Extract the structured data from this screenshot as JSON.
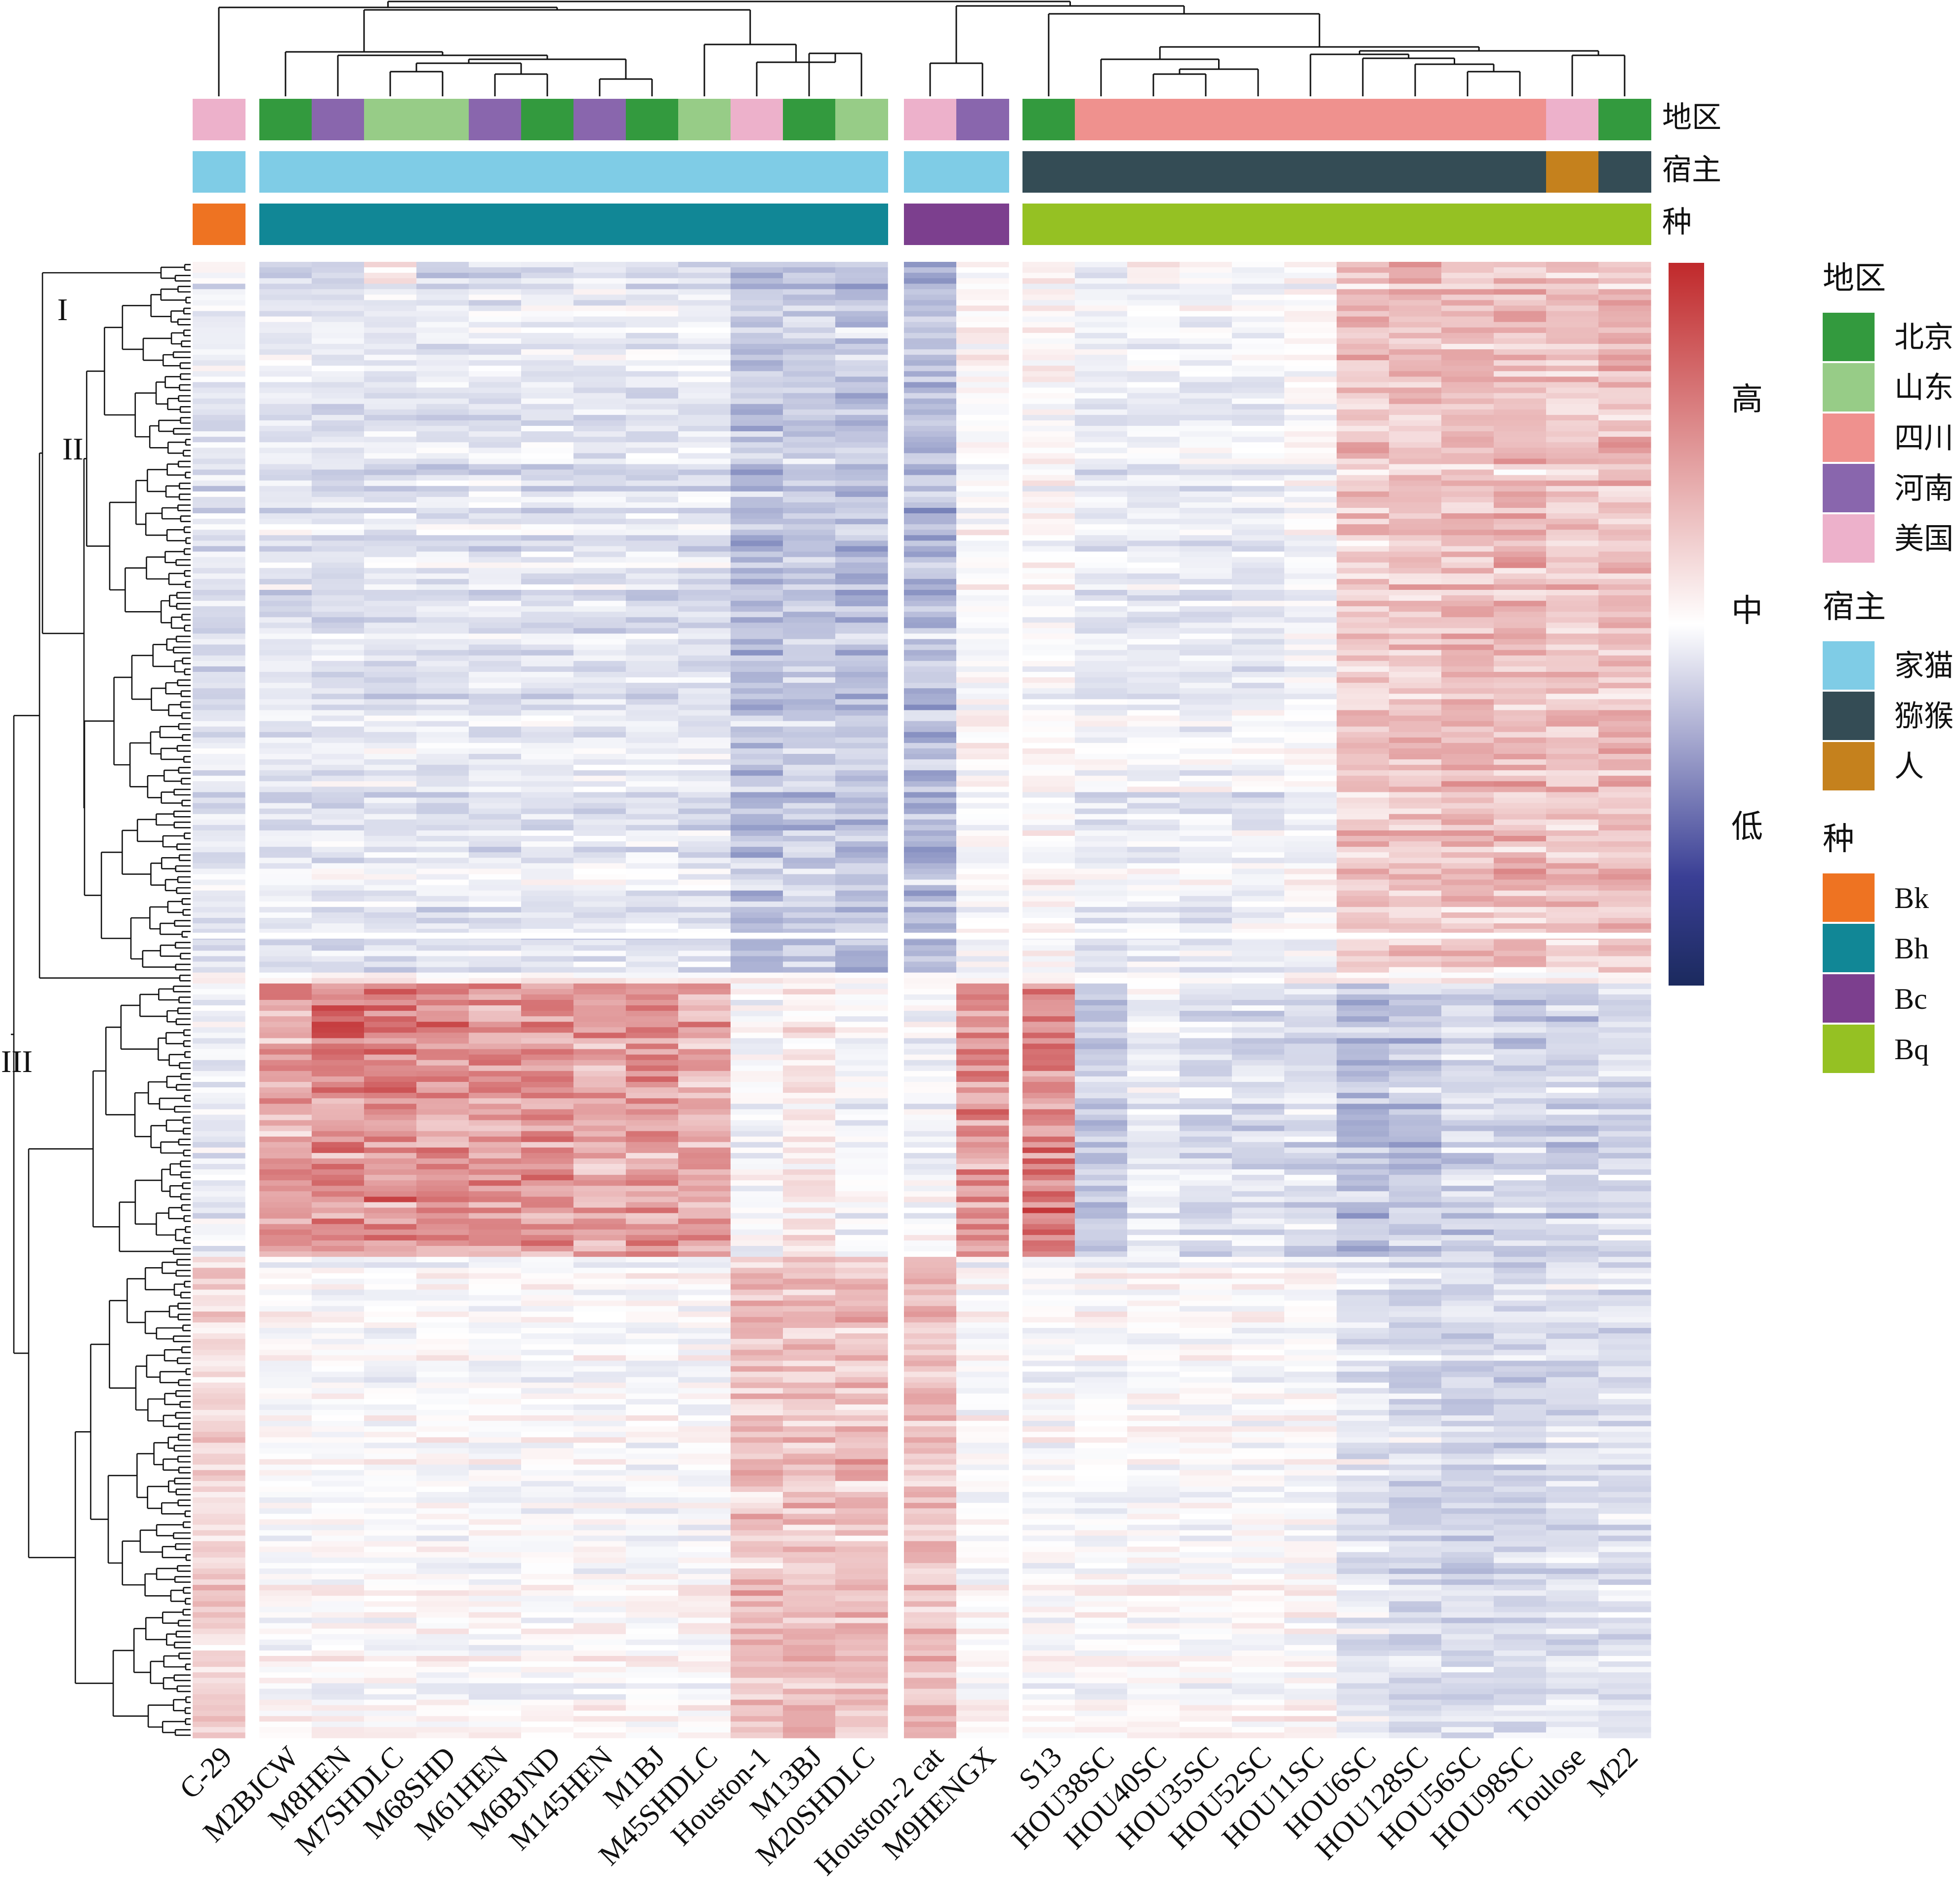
{
  "chart_data": {
    "type": "heatmap",
    "title": "",
    "samples": [
      "C-29",
      "M2BJCW",
      "M8HEN",
      "M7SHDLC",
      "M68SHD",
      "M61HEN",
      "M6BJND",
      "M145HEN",
      "M1BJ",
      "M45SHDLC",
      "Houston-1",
      "M13BJ",
      "M20SHDLC",
      "Houston-2 cat",
      "M9HENGX",
      "S13",
      "HOU38SC",
      "HOU40SC",
      "HOU35SC",
      "HOU52SC",
      "HOU11SC",
      "HOU6SC",
      "HOU128SC",
      "HOU56SC",
      "HOU98SC",
      "Toulose",
      "M22"
    ],
    "annotation_rows": [
      {
        "label": "地区",
        "values": [
          "美国",
          "北京",
          "河南",
          "山东",
          "山东",
          "河南",
          "北京",
          "河南",
          "北京",
          "山东",
          "美国",
          "北京",
          "山东",
          "美国",
          "河南",
          "北京",
          "四川",
          "四川",
          "四川",
          "四川",
          "四川",
          "四川",
          "四川",
          "四川",
          "四川",
          "美国",
          "北京"
        ]
      },
      {
        "label": "宿主",
        "values": [
          "家猫",
          "家猫",
          "家猫",
          "家猫",
          "家猫",
          "家猫",
          "家猫",
          "家猫",
          "家猫",
          "家猫",
          "家猫",
          "家猫",
          "家猫",
          "家猫",
          "家猫",
          "猕猴",
          "猕猴",
          "猕猴",
          "猕猴",
          "猕猴",
          "猕猴",
          "猕猴",
          "猕猴",
          "猕猴",
          "猕猴",
          "人",
          "猕猴"
        ]
      },
      {
        "label": "种",
        "values": [
          "Bk",
          "Bh",
          "Bh",
          "Bh",
          "Bh",
          "Bh",
          "Bh",
          "Bh",
          "Bh",
          "Bh",
          "Bh",
          "Bh",
          "Bh",
          "Bc",
          "Bc",
          "Bq",
          "Bq",
          "Bq",
          "Bq",
          "Bq",
          "Bq",
          "Bq",
          "Bq",
          "Bq",
          "Bq",
          "Bq",
          "Bq"
        ]
      }
    ],
    "column_groups": [
      [
        0
      ],
      [
        1,
        2,
        3,
        4,
        5,
        6,
        7,
        8,
        9,
        10,
        11,
        12
      ],
      [
        13,
        14
      ],
      [
        15,
        16,
        17,
        18,
        19,
        20,
        21,
        22,
        23,
        24,
        25,
        26
      ]
    ],
    "row_clusters": [
      {
        "label": "I",
        "rows": 4,
        "pattern": [
          0.0,
          -0.2,
          -0.2,
          0.1,
          -0.25,
          -0.2,
          -0.2,
          -0.15,
          -0.2,
          -0.2,
          -0.35,
          -0.3,
          -0.4,
          -0.45,
          0.0,
          0.15,
          -0.1,
          0.05,
          0.0,
          -0.05,
          0.0,
          0.3,
          0.35,
          0.35,
          0.35,
          0.3,
          0.3
        ]
      },
      {
        "label": "II",
        "rows": 126,
        "pattern": [
          -0.15,
          -0.15,
          -0.15,
          -0.15,
          -0.15,
          -0.15,
          -0.15,
          -0.15,
          -0.15,
          -0.15,
          -0.35,
          -0.3,
          -0.35,
          -0.4,
          0.0,
          0.0,
          -0.1,
          -0.1,
          -0.1,
          -0.1,
          -0.05,
          0.25,
          0.25,
          0.3,
          0.3,
          0.25,
          0.3
        ]
      },
      {
        "label": "",
        "rows": 2,
        "pattern": [
          0.0,
          0.0,
          0.0,
          0.0,
          0.0,
          0.0,
          0.0,
          0.0,
          0.0,
          0.0,
          0.0,
          0.0,
          0.0,
          0.0,
          0.0,
          0.0,
          0.0,
          0.0,
          0.0,
          0.0,
          0.0,
          0.0,
          0.0,
          0.0,
          0.0,
          0.0,
          0.0
        ]
      },
      {
        "label": "III",
        "rows": 50,
        "pattern": [
          -0.1,
          0.45,
          0.55,
          0.55,
          0.5,
          0.45,
          0.5,
          0.4,
          0.45,
          0.4,
          -0.05,
          0.1,
          -0.05,
          -0.05,
          0.5,
          0.55,
          -0.3,
          -0.1,
          -0.2,
          -0.2,
          -0.2,
          -0.35,
          -0.3,
          -0.25,
          -0.25,
          -0.25,
          -0.2
        ]
      },
      {
        "label": "",
        "rows": 88,
        "pattern": [
          0.2,
          0.0,
          0.0,
          0.0,
          0.0,
          0.0,
          0.0,
          0.0,
          0.0,
          0.0,
          0.3,
          0.3,
          0.3,
          0.3,
          0.0,
          0.0,
          0.0,
          0.0,
          0.0,
          0.0,
          0.0,
          -0.15,
          -0.2,
          -0.2,
          -0.2,
          -0.15,
          -0.15
        ]
      }
    ],
    "color_scale": {
      "low": "#1b2a5e",
      "mid": "#ffffff",
      "high": "#c0292b",
      "labels": {
        "high": "高",
        "mid": "中",
        "low": "低"
      }
    },
    "legend": {
      "placement": "right",
      "groups": [
        {
          "title": "地区",
          "items": [
            {
              "label": "北京",
              "color": "#339a3e"
            },
            {
              "label": "山东",
              "color": "#97cc87"
            },
            {
              "label": "四川",
              "color": "#ef918e"
            },
            {
              "label": "河南",
              "color": "#8966ad"
            },
            {
              "label": "美国",
              "color": "#edb1cb"
            }
          ]
        },
        {
          "title": "宿主",
          "items": [
            {
              "label": "家猫",
              "color": "#7fcce6"
            },
            {
              "label": "猕猴",
              "color": "#344c55"
            },
            {
              "label": "人",
              "color": "#c5811d"
            }
          ]
        },
        {
          "title": "种",
          "items": [
            {
              "label": "Bk",
              "color": "#ee7322"
            },
            {
              "label": "Bh",
              "color": "#118796"
            },
            {
              "label": "Bc",
              "color": "#7c3f8e"
            },
            {
              "label": "Bq",
              "color": "#95c123"
            }
          ]
        }
      ]
    }
  }
}
